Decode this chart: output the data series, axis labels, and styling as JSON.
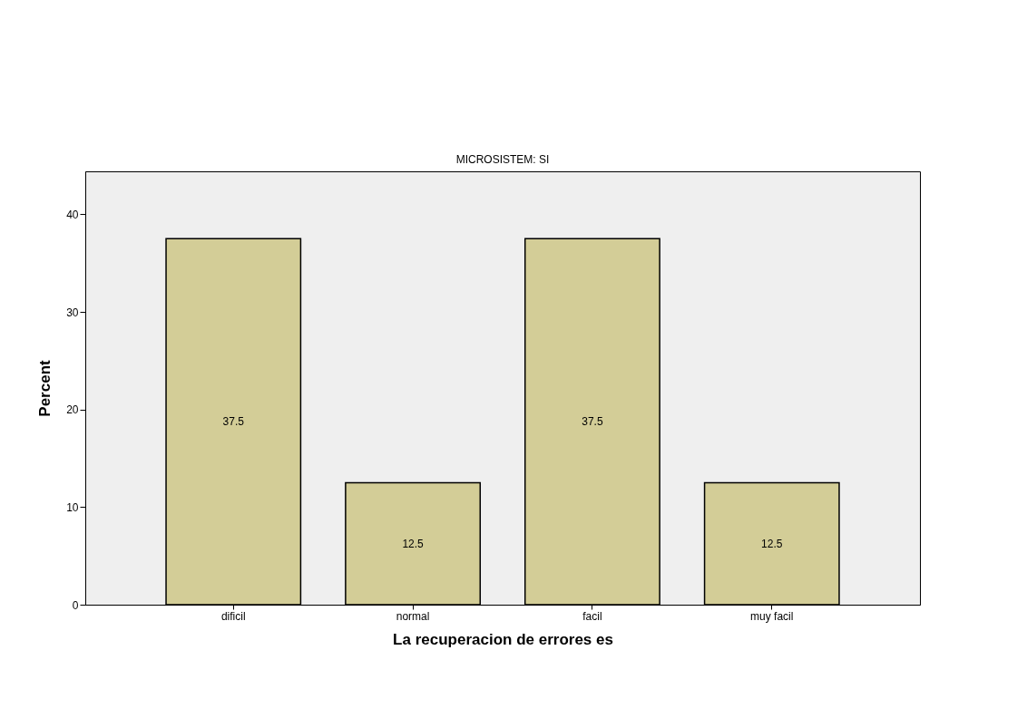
{
  "chart_data": {
    "type": "bar",
    "title": "MICROSISTEM: SI",
    "xlabel": "La recuperacion de errores es",
    "ylabel": "Percent",
    "categories": [
      "dificil",
      "normal",
      "facil",
      "muy facil"
    ],
    "values": [
      37.5,
      12.5,
      37.5,
      12.5
    ],
    "color": "#d3cd97",
    "ylim": [
      0,
      44.4
    ],
    "yticks": [
      0,
      10,
      20,
      30,
      40
    ],
    "data_labels": true,
    "grid": false
  }
}
